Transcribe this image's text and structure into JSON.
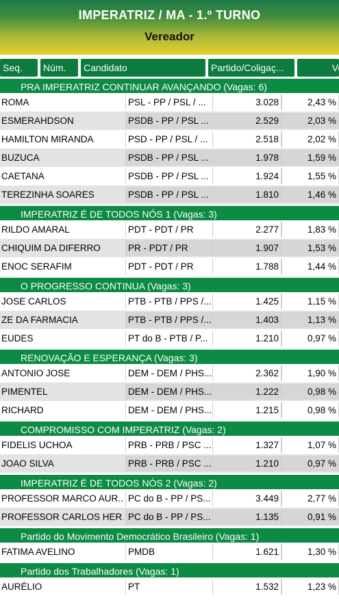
{
  "header": {
    "title": "IMPERATRIZ / MA - 1.º TURNO",
    "subtitle": "Vereador"
  },
  "columns": {
    "seq": "Seq.",
    "num": "Núm.",
    "candidate": "Candidato",
    "party": "Partido/Coligaç...",
    "votes": "Vot"
  },
  "groups": [
    {
      "label": "PRA IMPERATRIZ CONTINUAR AVANÇANDO   (Vagas: 6)",
      "rows": [
        {
          "name": "ROMA",
          "party": "PSL - PP / PSL / ...",
          "votes": "3.028",
          "pct": "2,43 %"
        },
        {
          "name": "ESMERAHDSON",
          "party": "PSDB - PP / PSL ...",
          "votes": "2.529",
          "pct": "2,03 %"
        },
        {
          "name": "HAMILTON MIRANDA",
          "party": "PSD - PP / PSL / ...",
          "votes": "2.518",
          "pct": "2,02 %"
        },
        {
          "name": "BUZUCA",
          "party": "PSDB - PP / PSL ...",
          "votes": "1.978",
          "pct": "1,59 %"
        },
        {
          "name": "CAETANA",
          "party": "PSDB - PP / PSL ...",
          "votes": "1.924",
          "pct": "1,55 %"
        },
        {
          "name": "TEREZINHA SOARES",
          "party": "PSDB - PP / PSL ...",
          "votes": "1.810",
          "pct": "1,46 %"
        }
      ]
    },
    {
      "label": "IMPERATRIZ É DE TODOS NÓS 1   (Vagas: 3)",
      "rows": [
        {
          "name": "RILDO AMARAL",
          "party": "PDT - PDT / PR",
          "votes": "2.277",
          "pct": "1,83 %"
        },
        {
          "name": "CHIQUIM DA DIFERRO",
          "party": "PR - PDT / PR",
          "votes": "1.907",
          "pct": "1,53 %"
        },
        {
          "name": "ENOC SERAFIM",
          "party": "PDT - PDT / PR",
          "votes": "1.788",
          "pct": "1,44 %"
        }
      ]
    },
    {
      "label": "O PROGRESSO CONTINUA   (Vagas: 3)",
      "rows": [
        {
          "name": "JOSE CARLOS",
          "party": "PTB - PTB / PPS /...",
          "votes": "1.425",
          "pct": "1,15 %"
        },
        {
          "name": "ZE DA FARMACIA",
          "party": "PTB - PTB / PPS /...",
          "votes": "1.403",
          "pct": "1,13 %"
        },
        {
          "name": "EUDES",
          "party": "PT do B - PTB / P...",
          "votes": "1.210",
          "pct": "0,97 %"
        }
      ]
    },
    {
      "label": "RENOVAÇÃO E ESPERANÇA   (Vagas: 3)",
      "rows": [
        {
          "name": "ANTONIO JOSE",
          "party": "DEM - DEM / PHS...",
          "votes": "2.362",
          "pct": "1,90 %"
        },
        {
          "name": "PIMENTEL",
          "party": "DEM - DEM / PHS...",
          "votes": "1.222",
          "pct": "0,98 %"
        },
        {
          "name": "RICHARD",
          "party": "DEM - DEM / PHS...",
          "votes": "1.215",
          "pct": "0,98 %"
        }
      ]
    },
    {
      "label": "COMPROMISSO COM IMPERATRIZ   (Vagas: 2)",
      "rows": [
        {
          "name": "FIDELIS UCHOA",
          "party": "PRB - PRB / PSC ...",
          "votes": "1.327",
          "pct": "1,07 %"
        },
        {
          "name": "JOAO SILVA",
          "party": "PRB - PRB / PSC ...",
          "votes": "1.210",
          "pct": "0,97 %"
        }
      ]
    },
    {
      "label": "IMPERATRIZ É DE TODOS NÓS 2   (Vagas: 2)",
      "rows": [
        {
          "name": "PROFESSOR MARCO AUR...",
          "party": "PC do B - PP / PS...",
          "votes": "3.449",
          "pct": "2,77 %"
        },
        {
          "name": "PROFESSOR CARLOS HER...",
          "party": "PC do B - PP / PS...",
          "votes": "1.135",
          "pct": "0,91 %"
        }
      ]
    },
    {
      "label": "Partido do Movimento Democrático Brasileiro   (Vagas: 1)",
      "rows": [
        {
          "name": "FATIMA AVELINO",
          "party": "PMDB",
          "votes": "1.621",
          "pct": "1,30 %"
        }
      ]
    },
    {
      "label": "Partido dos Trabalhadores   (Vagas: 1)",
      "rows": [
        {
          "name": "AURÉLIO",
          "party": "PT",
          "votes": "1.532",
          "pct": "1,23 %"
        }
      ]
    }
  ]
}
